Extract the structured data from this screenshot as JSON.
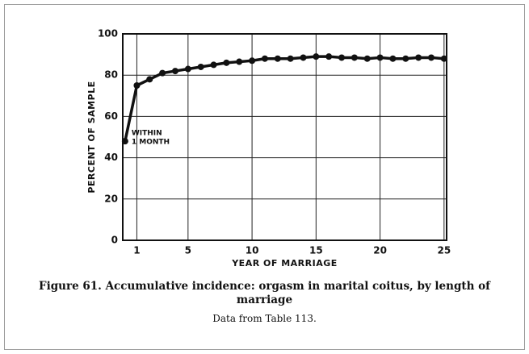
{
  "chart_data": {
    "type": "line",
    "y_label": "PERCENT OF SAMPLE",
    "x_label": "YEAR OF MARRIAGE",
    "annotation": [
      "WITHIN",
      "1 MONTH"
    ],
    "caption": "Figure 61. Accumulative incidence: orgasm in marital coitus, by length of marriage",
    "note": "Data from Table 113.",
    "x": [
      0.08,
      1,
      2,
      3,
      4,
      5,
      6,
      7,
      8,
      9,
      10,
      11,
      12,
      13,
      14,
      15,
      16,
      17,
      18,
      19,
      20,
      21,
      22,
      23,
      24,
      25
    ],
    "series": [
      {
        "color": "#111111",
        "values": [
          48,
          75,
          78,
          81,
          82,
          83,
          84,
          85,
          86,
          86.5,
          87,
          88,
          88,
          88,
          88.5,
          89,
          89,
          88.5,
          88.5,
          88,
          88.5,
          88,
          88,
          88.5,
          88.5,
          88
        ]
      }
    ],
    "xlim": [
      -0.1,
      25.2
    ],
    "ylim": [
      0,
      100
    ],
    "xticks": [
      1,
      5,
      10,
      15,
      20,
      25
    ],
    "yticks": [
      0,
      20,
      40,
      60,
      80,
      100
    ],
    "grid": true
  }
}
